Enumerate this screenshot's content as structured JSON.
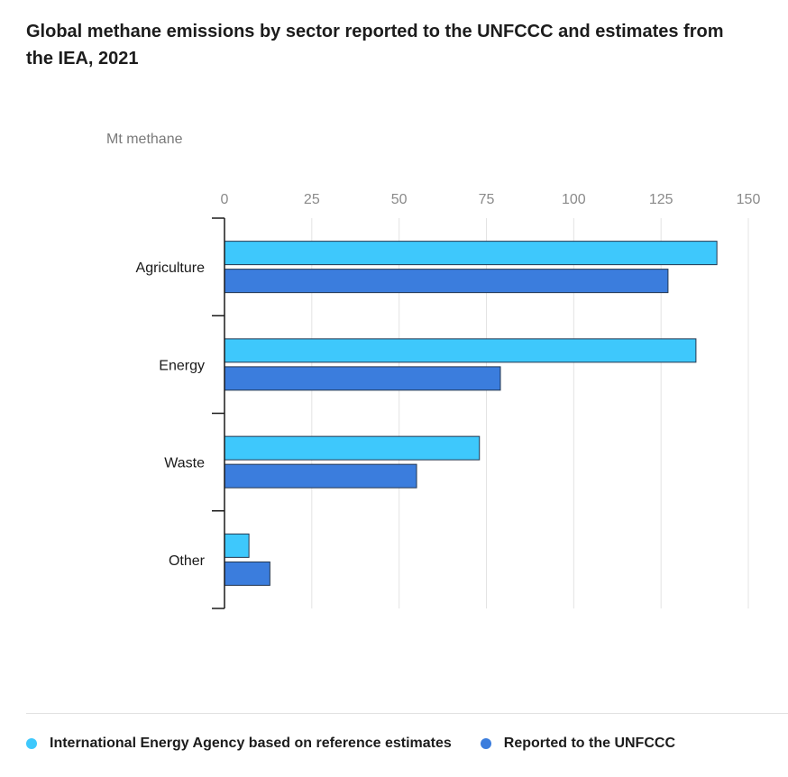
{
  "chart_data": {
    "type": "bar",
    "orientation": "horizontal",
    "title": "Global methane emissions by sector reported to the UNFCCC and estimates from the IEA, 2021",
    "unit": "Mt methane",
    "categories": [
      "Agriculture",
      "Energy",
      "Waste",
      "Other"
    ],
    "series": [
      {
        "name": "International Energy Agency based on reference estimates",
        "color": "#3ec8fc",
        "values": [
          141,
          135,
          73,
          7
        ]
      },
      {
        "name": "Reported to the UNFCCC",
        "color": "#3b7ddd",
        "values": [
          127,
          79,
          55,
          13
        ]
      }
    ],
    "xlim": [
      0,
      150
    ],
    "xticks": [
      0,
      25,
      50,
      75,
      100,
      125,
      150
    ],
    "grid": true,
    "legend_position": "bottom"
  }
}
